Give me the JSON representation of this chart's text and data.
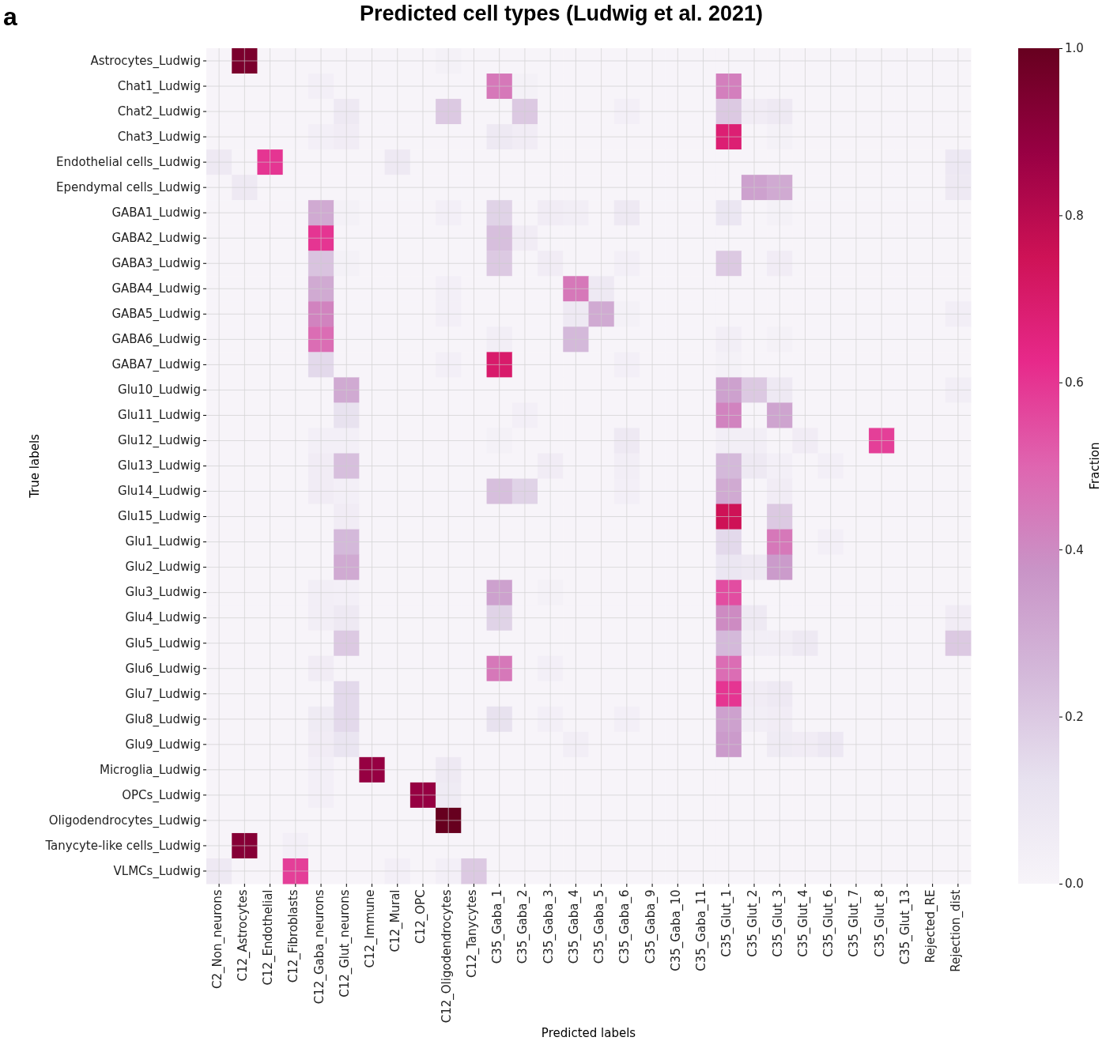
{
  "chart_data": {
    "type": "heatmap",
    "title": "Predicted cell types (Ludwig  et al. 2021)",
    "xlabel": "Predicted labels",
    "ylabel": "True labels",
    "clabel": "Fraction",
    "annotations": [
      "a"
    ],
    "grid": true,
    "categories": [
      "C2_Non_neurons",
      "C12_Astrocytes",
      "C12_Endothelial",
      "C12_Fibroblasts",
      "C12_Gaba_neurons",
      "C12_Glut_neurons",
      "C12_Immune",
      "C12_Mural",
      "C12_OPC",
      "C12_Oligodendrocytes",
      "C12_Tanycytes",
      "C35_Gaba_1",
      "C35_Gaba_2",
      "C35_Gaba_3",
      "C35_Gaba_4",
      "C35_Gaba_5",
      "C35_Gaba_6",
      "C35_Gaba_9",
      "C35_Gaba_10",
      "C35_Gaba_11",
      "C35_Glut_1",
      "C35_Glut_2",
      "C35_Glut_3",
      "C35_Glut_4",
      "C35_Glut_6",
      "C35_Glut_7",
      "C35_Glut_8",
      "C35_Glut_13",
      "Rejected_RE",
      "Rejection_dist"
    ],
    "y_categories": [
      "Astrocytes_Ludwig",
      "Chat1_Ludwig",
      "Chat2_Ludwig",
      "Chat3_Ludwig",
      "Endothelial cells_Ludwig",
      "Ependymal cells_Ludwig",
      "GABA1_Ludwig",
      "GABA2_Ludwig",
      "GABA3_Ludwig",
      "GABA4_Ludwig",
      "GABA5_Ludwig",
      "GABA6_Ludwig",
      "GABA7_Ludwig",
      "Glu10_Ludwig",
      "Glu11_Ludwig",
      "Glu12_Ludwig",
      "Glu13_Ludwig",
      "Glu14_Ludwig",
      "Glu15_Ludwig",
      "Glu1_Ludwig",
      "Glu2_Ludwig",
      "Glu3_Ludwig",
      "Glu4_Ludwig",
      "Glu5_Ludwig",
      "Glu6_Ludwig",
      "Glu7_Ludwig",
      "Glu8_Ludwig",
      "Glu9_Ludwig",
      "Microglia_Ludwig",
      "OPCs_Ludwig",
      "Oligodendrocytes_Ludwig",
      "Tanycyte-like cells_Ludwig",
      "VLMCs_Ludwig"
    ],
    "clim": [
      0,
      1
    ],
    "cticks": [
      {
        "value": 0,
        "label": "0.0"
      },
      {
        "value": 0.2,
        "label": "0.2"
      },
      {
        "value": 0.4,
        "label": "0.4"
      },
      {
        "value": 0.6,
        "label": "0.6"
      },
      {
        "value": 0.8,
        "label": "0.8"
      },
      {
        "value": 1,
        "label": "1.0"
      }
    ],
    "cells": [
      [
        0,
        0.95,
        0,
        0,
        0,
        0,
        0,
        0,
        0,
        0.02,
        0,
        0,
        0,
        0,
        0,
        0,
        0,
        0,
        0,
        0,
        0,
        0,
        0,
        0,
        0,
        0,
        0,
        0,
        0,
        0
      ],
      [
        0,
        0,
        0,
        0,
        0.03,
        0,
        0,
        0,
        0,
        0,
        0,
        0.45,
        0.02,
        0,
        0,
        0,
        0,
        0,
        0,
        0,
        0.43,
        0,
        0,
        0,
        0,
        0,
        0,
        0,
        0,
        0
      ],
      [
        0,
        0,
        0,
        0,
        0,
        0.07,
        0,
        0,
        0,
        0.2,
        0,
        0,
        0.2,
        0,
        0,
        0,
        0.03,
        0,
        0,
        0,
        0.2,
        0.05,
        0.07,
        0,
        0,
        0,
        0,
        0,
        0,
        0
      ],
      [
        0,
        0,
        0,
        0,
        0.03,
        0.05,
        0,
        0,
        0,
        0,
        0,
        0.07,
        0.05,
        0,
        0,
        0,
        0,
        0,
        0,
        0,
        0.68,
        0,
        0.02,
        0,
        0,
        0,
        0,
        0,
        0,
        0
      ],
      [
        0.07,
        0,
        0.6,
        0,
        0,
        0,
        0,
        0.07,
        0,
        0,
        0,
        0,
        0,
        0,
        0,
        0,
        0,
        0,
        0,
        0,
        0,
        0,
        0,
        0,
        0,
        0,
        0,
        0,
        0,
        0.08
      ],
      [
        0,
        0.07,
        0,
        0,
        0,
        0,
        0,
        0,
        0,
        0,
        0,
        0,
        0,
        0,
        0,
        0,
        0,
        0,
        0,
        0,
        0,
        0.33,
        0.3,
        0,
        0,
        0,
        0,
        0,
        0,
        0.07
      ],
      [
        0,
        0,
        0,
        0,
        0.3,
        0.02,
        0,
        0,
        0,
        0.03,
        0,
        0.17,
        0,
        0.05,
        0.04,
        0,
        0.07,
        0,
        0,
        0,
        0.09,
        0,
        0.02,
        0,
        0,
        0,
        0,
        0,
        0,
        0
      ],
      [
        0,
        0,
        0,
        0,
        0.6,
        0,
        0,
        0,
        0,
        0,
        0,
        0.23,
        0.05,
        0,
        0,
        0,
        0,
        0,
        0,
        0,
        0,
        0,
        0,
        0,
        0,
        0,
        0,
        0,
        0,
        0
      ],
      [
        0,
        0,
        0,
        0,
        0.22,
        0.02,
        0,
        0,
        0,
        0,
        0,
        0.2,
        0,
        0.05,
        0,
        0,
        0.03,
        0,
        0,
        0,
        0.2,
        0,
        0.05,
        0,
        0,
        0,
        0,
        0,
        0,
        0
      ],
      [
        0,
        0,
        0,
        0,
        0.3,
        0,
        0,
        0,
        0,
        0.03,
        0,
        0,
        0,
        0,
        0.45,
        0.07,
        0,
        0,
        0,
        0,
        0,
        0,
        0,
        0,
        0,
        0,
        0,
        0,
        0,
        0
      ],
      [
        0,
        0,
        0,
        0,
        0.42,
        0,
        0,
        0,
        0,
        0.03,
        0,
        0,
        0,
        0,
        0.07,
        0.3,
        0.02,
        0,
        0,
        0,
        0,
        0,
        0,
        0,
        0,
        0,
        0,
        0,
        0,
        0.04
      ],
      [
        0,
        0,
        0,
        0,
        0.48,
        0,
        0,
        0,
        0,
        0,
        0,
        0.04,
        0,
        0,
        0.25,
        0,
        0,
        0,
        0,
        0,
        0.04,
        0,
        0.02,
        0,
        0,
        0,
        0,
        0,
        0,
        0
      ],
      [
        0,
        0,
        0,
        0,
        0.15,
        0,
        0,
        0,
        0,
        0.03,
        0,
        0.7,
        0,
        0,
        0,
        0,
        0.03,
        0,
        0,
        0,
        0.02,
        0,
        0,
        0,
        0,
        0,
        0,
        0,
        0,
        0
      ],
      [
        0,
        0,
        0,
        0,
        0,
        0.3,
        0,
        0,
        0,
        0,
        0,
        0,
        0,
        0,
        0,
        0,
        0,
        0,
        0,
        0,
        0.33,
        0.2,
        0.07,
        0,
        0,
        0,
        0,
        0,
        0,
        0.04
      ],
      [
        0,
        0,
        0,
        0,
        0,
        0.12,
        0,
        0,
        0,
        0,
        0,
        0,
        0.03,
        0,
        0,
        0,
        0,
        0,
        0,
        0,
        0.42,
        0,
        0.32,
        0,
        0,
        0,
        0,
        0,
        0,
        0
      ],
      [
        0,
        0,
        0,
        0,
        0.03,
        0.03,
        0,
        0,
        0,
        0,
        0,
        0.02,
        0,
        0,
        0,
        0,
        0.07,
        0,
        0,
        0,
        0.04,
        0.04,
        0,
        0.05,
        0,
        0,
        0.58,
        0,
        0,
        0
      ],
      [
        0,
        0,
        0,
        0,
        0.05,
        0.23,
        0,
        0,
        0,
        0,
        0,
        0,
        0,
        0.05,
        0,
        0,
        0.04,
        0,
        0,
        0,
        0.25,
        0.07,
        0.03,
        0,
        0.03,
        0,
        0,
        0,
        0,
        0
      ],
      [
        0,
        0,
        0,
        0,
        0.05,
        0.03,
        0,
        0,
        0,
        0,
        0,
        0.23,
        0.17,
        0,
        0,
        0,
        0.03,
        0,
        0,
        0,
        0.3,
        0,
        0.05,
        0,
        0,
        0,
        0,
        0,
        0,
        0
      ],
      [
        0,
        0,
        0,
        0,
        0,
        0.05,
        0,
        0,
        0,
        0,
        0,
        0,
        0,
        0,
        0,
        0,
        0,
        0,
        0,
        0,
        0.75,
        0,
        0.2,
        0,
        0,
        0,
        0,
        0,
        0,
        0
      ],
      [
        0,
        0,
        0,
        0,
        0,
        0.25,
        0,
        0,
        0,
        0,
        0,
        0,
        0,
        0,
        0,
        0,
        0,
        0,
        0,
        0,
        0.15,
        0,
        0.45,
        0,
        0.03,
        0,
        0,
        0,
        0,
        0
      ],
      [
        0,
        0,
        0,
        0,
        0,
        0.3,
        0,
        0,
        0,
        0,
        0,
        0,
        0,
        0,
        0,
        0,
        0,
        0,
        0,
        0,
        0.09,
        0.07,
        0.35,
        0,
        0,
        0,
        0,
        0,
        0,
        0
      ],
      [
        0,
        0,
        0,
        0,
        0.04,
        0.03,
        0,
        0,
        0,
        0,
        0,
        0.33,
        0,
        0.02,
        0,
        0,
        0,
        0,
        0,
        0,
        0.55,
        0,
        0,
        0,
        0,
        0,
        0,
        0,
        0,
        0
      ],
      [
        0,
        0,
        0,
        0,
        0.04,
        0.07,
        0,
        0,
        0,
        0,
        0,
        0.17,
        0,
        0,
        0,
        0,
        0,
        0,
        0,
        0,
        0.4,
        0.07,
        0,
        0,
        0,
        0,
        0,
        0,
        0,
        0.05
      ],
      [
        0,
        0,
        0,
        0,
        0,
        0.2,
        0,
        0,
        0,
        0,
        0,
        0,
        0,
        0,
        0,
        0,
        0,
        0,
        0,
        0,
        0.25,
        0.04,
        0.04,
        0.07,
        0,
        0,
        0,
        0,
        0,
        0.2
      ],
      [
        0,
        0,
        0,
        0,
        0.05,
        0,
        0,
        0,
        0,
        0,
        0,
        0.45,
        0,
        0.03,
        0,
        0,
        0,
        0,
        0,
        0,
        0.48,
        0,
        0,
        0,
        0,
        0,
        0,
        0,
        0,
        0
      ],
      [
        0,
        0,
        0,
        0,
        0,
        0.15,
        0,
        0,
        0,
        0,
        0,
        0,
        0,
        0,
        0,
        0,
        0,
        0,
        0,
        0,
        0.6,
        0.05,
        0.07,
        0,
        0,
        0,
        0,
        0,
        0,
        0
      ],
      [
        0,
        0,
        0,
        0,
        0.06,
        0.15,
        0,
        0,
        0,
        0,
        0,
        0.12,
        0,
        0.03,
        0,
        0,
        0.03,
        0,
        0,
        0,
        0.33,
        0.04,
        0.05,
        0,
        0,
        0,
        0,
        0,
        0,
        0
      ],
      [
        0,
        0,
        0,
        0,
        0.05,
        0.1,
        0,
        0,
        0,
        0,
        0,
        0,
        0,
        0,
        0.04,
        0,
        0,
        0,
        0,
        0,
        0.35,
        0,
        0.06,
        0.05,
        0.08,
        0,
        0,
        0,
        0,
        0
      ],
      [
        0,
        0,
        0,
        0,
        0.03,
        0,
        0.88,
        0,
        0,
        0.07,
        0,
        0,
        0,
        0,
        0,
        0,
        0,
        0,
        0,
        0,
        0,
        0,
        0,
        0,
        0,
        0,
        0,
        0,
        0,
        0
      ],
      [
        0,
        0,
        0,
        0,
        0.03,
        0,
        0,
        0,
        0.88,
        0.06,
        0,
        0,
        0,
        0,
        0,
        0,
        0,
        0,
        0,
        0,
        0,
        0,
        0,
        0,
        0,
        0,
        0,
        0,
        0,
        0
      ],
      [
        0,
        0,
        0,
        0,
        0,
        0,
        0,
        0,
        0,
        1.0,
        0,
        0,
        0,
        0,
        0,
        0,
        0,
        0,
        0,
        0,
        0,
        0,
        0,
        0,
        0,
        0,
        0,
        0,
        0,
        0
      ],
      [
        0,
        0.92,
        0,
        0.03,
        0,
        0,
        0,
        0,
        0,
        0,
        0,
        0,
        0,
        0,
        0,
        0,
        0,
        0,
        0,
        0,
        0,
        0,
        0,
        0,
        0,
        0,
        0,
        0,
        0,
        0
      ],
      [
        0.07,
        0,
        0,
        0.58,
        0,
        0,
        0,
        0.03,
        0,
        0.03,
        0.2,
        0,
        0,
        0,
        0,
        0,
        0,
        0,
        0,
        0,
        0,
        0,
        0,
        0,
        0,
        0,
        0,
        0,
        0,
        0
      ]
    ]
  }
}
